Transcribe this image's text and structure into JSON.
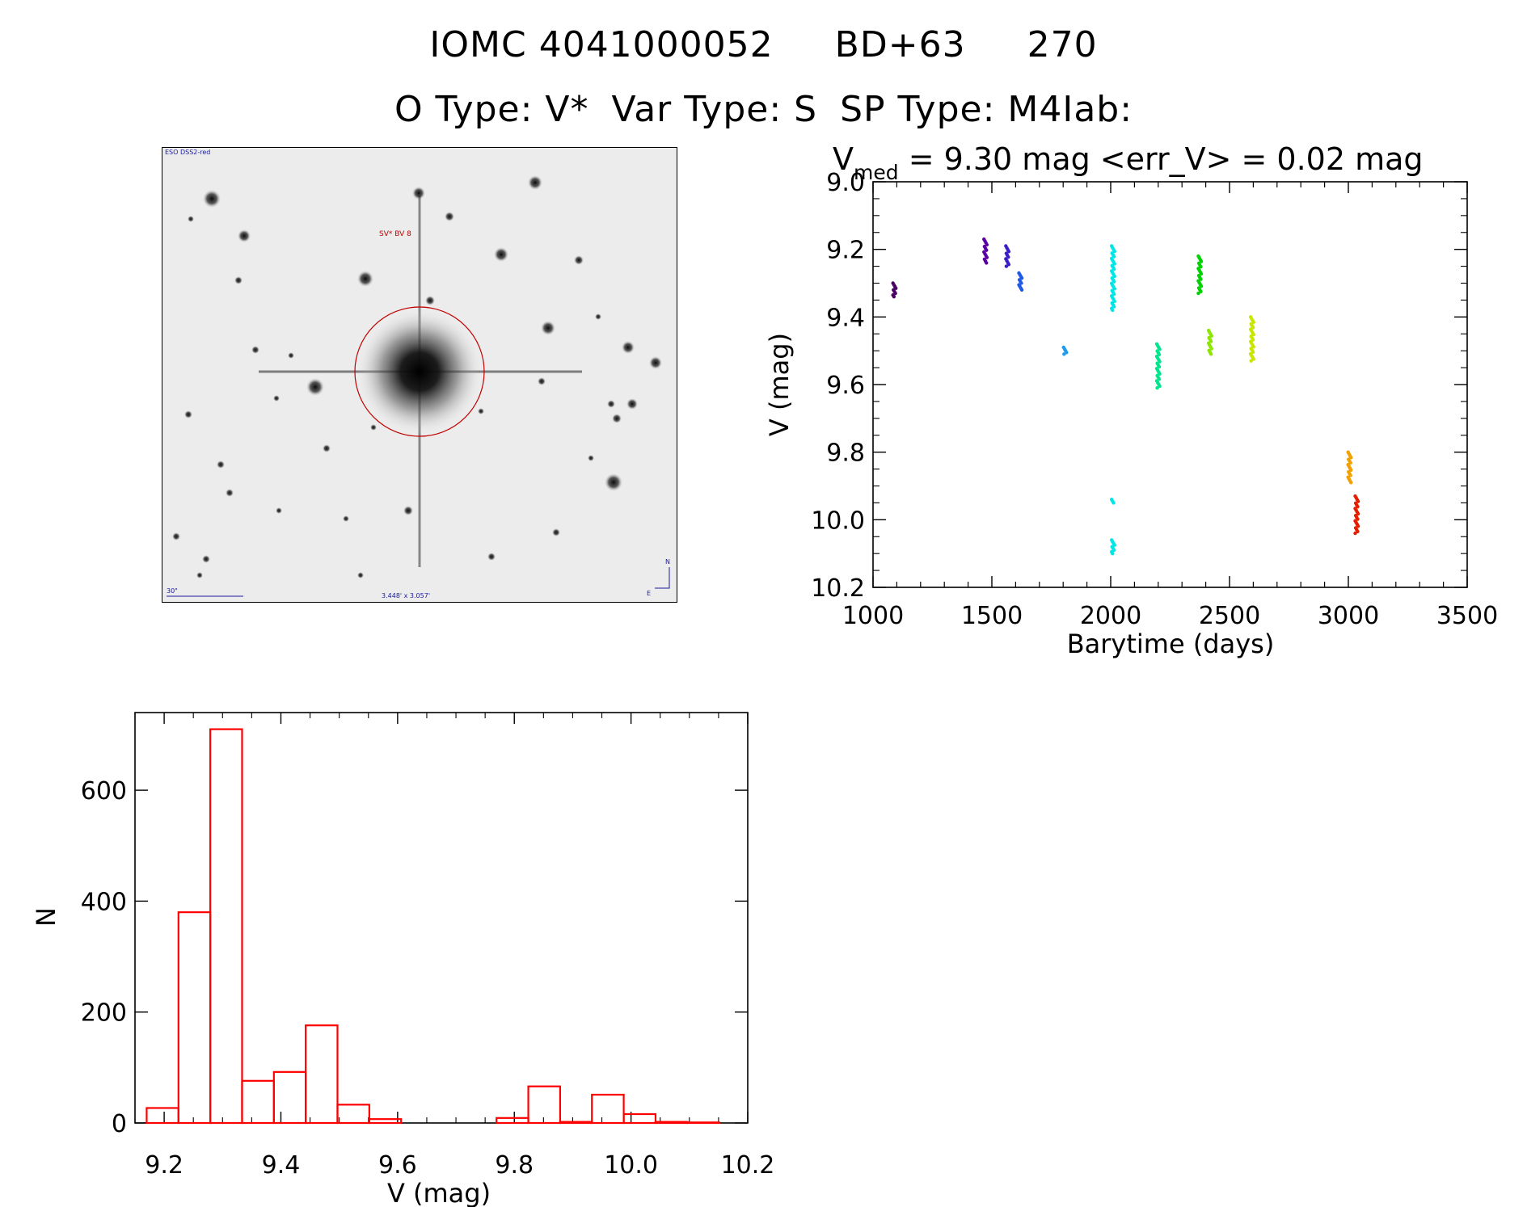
{
  "header": {
    "id_iomc": "IOMC 4041000052",
    "id_bd": "BD+63",
    "id_num": "270",
    "otype": "O Type: V*",
    "vartype": "Var Type: S",
    "sptype": "SP Type: M4Iab:"
  },
  "finder": {
    "survey_label": "ESO DSS2-red",
    "target_label": "SV* BV 8",
    "scale_label": "30\"",
    "fov_label": "3.448' x 3.057'",
    "north_label": "N",
    "east_label": "E",
    "colors": {
      "frame": "#000000",
      "circle": "#c00000",
      "labels": "#1a1aa0"
    }
  },
  "chart_data": [
    {
      "type": "scatter",
      "title_prefix": "V",
      "title_sub": "med",
      "title_rest": " = 9.30 mag <err_V> = 0.02 mag",
      "xlabel": "Barytime (days)",
      "ylabel": "V (mag)",
      "xlim": [
        1000,
        3500
      ],
      "ylim": [
        10.2,
        9.0
      ],
      "y_inverted": true,
      "xticks": [
        1000,
        1500,
        2000,
        2500,
        3000,
        3500
      ],
      "xtick_labels": [
        "1000",
        "1500",
        "2000",
        "2500",
        "3000",
        "3500"
      ],
      "yticks": [
        9.0,
        9.2,
        9.4,
        9.6,
        9.8,
        10.0,
        10.2
      ],
      "ytick_labels": [
        "9.0",
        "9.2",
        "9.4",
        "9.6",
        "9.8",
        "10.0",
        "10.2"
      ],
      "groups": [
        {
          "x": 1090,
          "y_min": 9.3,
          "y_max": 9.34,
          "color": "#4b0066"
        },
        {
          "x": 1473,
          "y_min": 9.17,
          "y_max": 9.24,
          "color": "#5a00a0"
        },
        {
          "x": 1565,
          "y_min": 9.19,
          "y_max": 9.25,
          "color": "#3a1ec8"
        },
        {
          "x": 1620,
          "y_min": 9.27,
          "y_max": 9.32,
          "color": "#1e5ae6"
        },
        {
          "x": 1808,
          "y_min": 9.49,
          "y_max": 9.51,
          "color": "#1e9bf0"
        },
        {
          "x": 2010,
          "y_min": 9.19,
          "y_max": 9.38,
          "color": "#00e6e6"
        },
        {
          "x": 2010,
          "y_min": 9.94,
          "y_max": 9.95,
          "color": "#00e6e6"
        },
        {
          "x": 2010,
          "y_min": 10.06,
          "y_max": 10.1,
          "color": "#00e6e6"
        },
        {
          "x": 2200,
          "y_min": 9.48,
          "y_max": 9.61,
          "color": "#00e68c"
        },
        {
          "x": 2375,
          "y_min": 9.22,
          "y_max": 9.33,
          "color": "#00d200"
        },
        {
          "x": 2418,
          "y_min": 9.44,
          "y_max": 9.51,
          "color": "#8ce600"
        },
        {
          "x": 2595,
          "y_min": 9.4,
          "y_max": 9.53,
          "color": "#c8e600"
        },
        {
          "x": 3005,
          "y_min": 9.8,
          "y_max": 9.89,
          "color": "#f0a000"
        },
        {
          "x": 3035,
          "y_min": 9.93,
          "y_max": 10.04,
          "color": "#e61e00"
        }
      ]
    },
    {
      "type": "bar",
      "xlabel": "V (mag)",
      "ylabel": "N",
      "xlim": [
        9.15,
        10.2
      ],
      "ylim": [
        0,
        740
      ],
      "xticks": [
        9.2,
        9.4,
        9.6,
        9.8,
        10.0,
        10.2
      ],
      "xtick_labels": [
        "9.2",
        "9.4",
        "9.6",
        "9.8",
        "10.0",
        "10.2"
      ],
      "yticks": [
        0,
        200,
        400,
        600
      ],
      "ytick_labels": [
        "0",
        "200",
        "400",
        "600"
      ],
      "bin_width": 0.0545,
      "bin_starts": [
        9.17,
        9.2245,
        9.279,
        9.3335,
        9.388,
        9.4425,
        9.497,
        9.5515,
        9.606,
        9.6605,
        9.715,
        9.7695,
        9.824,
        9.8785,
        9.933,
        9.9875,
        10.042,
        10.0965
      ],
      "values": [
        27,
        380,
        710,
        76,
        92,
        176,
        33,
        7,
        0,
        0,
        0,
        9,
        66,
        2,
        51,
        16,
        2,
        1
      ],
      "color": "#ff0000"
    }
  ]
}
